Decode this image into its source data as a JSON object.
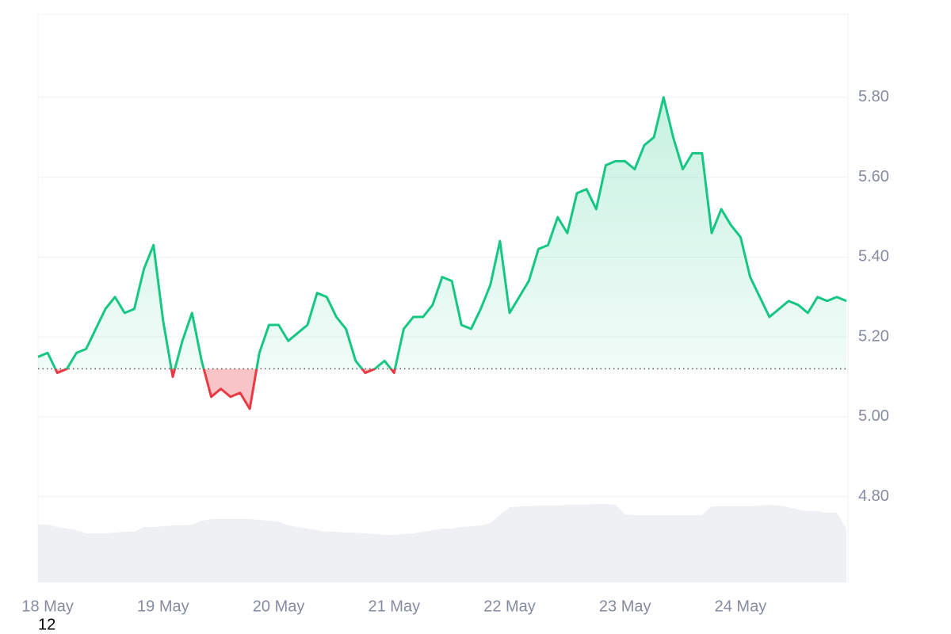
{
  "chart_data": {
    "type": "line",
    "categories": [
      null,
      "18 May",
      null,
      null,
      null,
      null,
      null,
      null,
      null,
      null,
      null,
      null,
      null,
      "19 May",
      null,
      null,
      null,
      null,
      null,
      null,
      null,
      null,
      null,
      null,
      null,
      "20 May",
      null,
      null,
      null,
      null,
      null,
      null,
      null,
      null,
      null,
      null,
      null,
      "21 May",
      null,
      null,
      null,
      null,
      null,
      null,
      null,
      null,
      null,
      null,
      null,
      "22 May",
      null,
      null,
      null,
      null,
      null,
      null,
      null,
      null,
      null,
      null,
      null,
      "23 May",
      null,
      null,
      null,
      null,
      null,
      null,
      null,
      null,
      null,
      null,
      null,
      "24 May",
      null,
      null,
      null,
      null,
      null,
      null,
      null,
      null,
      null,
      null,
      null
    ],
    "x_sublabel": "12",
    "values": [
      5.15,
      5.16,
      5.11,
      5.12,
      5.16,
      5.17,
      5.22,
      5.27,
      5.3,
      5.26,
      5.27,
      5.37,
      5.43,
      5.24,
      5.1,
      5.19,
      5.26,
      5.14,
      5.05,
      5.07,
      5.05,
      5.06,
      5.02,
      5.16,
      5.23,
      5.23,
      5.19,
      5.21,
      5.23,
      5.31,
      5.3,
      5.25,
      5.22,
      5.14,
      5.11,
      5.12,
      5.14,
      5.11,
      5.22,
      5.25,
      5.25,
      5.28,
      5.35,
      5.34,
      5.23,
      5.22,
      5.27,
      5.33,
      5.44,
      5.26,
      5.3,
      5.34,
      5.42,
      5.43,
      5.5,
      5.46,
      5.56,
      5.57,
      5.52,
      5.63,
      5.64,
      5.64,
      5.62,
      5.68,
      5.7,
      5.8,
      5.7,
      5.62,
      5.66,
      5.66,
      5.46,
      5.52,
      5.48,
      5.45,
      5.35,
      5.3,
      5.25,
      5.27,
      5.29,
      5.28,
      5.26,
      5.3,
      5.29,
      5.3,
      5.29
    ],
    "baseline": 5.12,
    "up_color": "#16c784",
    "down_color": "#ea3943",
    "volume": [
      73,
      73,
      70,
      68,
      66,
      62,
      62,
      62,
      63,
      64,
      64,
      70,
      70,
      71,
      72,
      72,
      73,
      78,
      80,
      80,
      80,
      80,
      80,
      79,
      78,
      77,
      72,
      70,
      68,
      66,
      64,
      64,
      63,
      63,
      62,
      61,
      60,
      60,
      61,
      62,
      64,
      66,
      68,
      68,
      70,
      71,
      72,
      75,
      85,
      95,
      96,
      96,
      97,
      97,
      97,
      98,
      98,
      98,
      99,
      99,
      98,
      86,
      85,
      85,
      85,
      85,
      85,
      85,
      85,
      85,
      96,
      96,
      96,
      96,
      96,
      97,
      98,
      97,
      95,
      92,
      90,
      90,
      88,
      88,
      68
    ],
    "volume_lim": [
      0,
      100
    ],
    "volume_color": "#eef0f3",
    "ylim": [
      4.585,
      6.008
    ],
    "yticks": [
      {
        "value": 4.8,
        "label": "4.80"
      },
      {
        "value": 5.0,
        "label": "5.00"
      },
      {
        "value": 5.2,
        "label": "5.20"
      },
      {
        "value": 5.4,
        "label": "5.40"
      },
      {
        "value": 5.6,
        "label": "5.60"
      },
      {
        "value": 5.8,
        "label": "5.80"
      }
    ],
    "grid": true
  }
}
